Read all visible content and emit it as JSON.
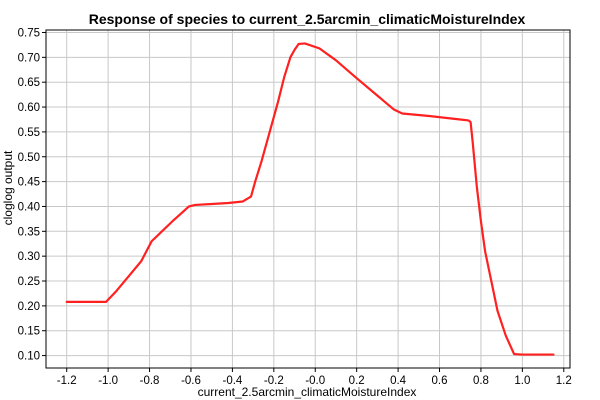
{
  "chart_data": {
    "type": "line",
    "title": "Response of species to current_2.5arcmin_climaticMoistureIndex",
    "xlabel": "current_2.5arcmin_climaticMoistureIndex",
    "ylabel": "cloglog output",
    "xlim": [
      -1.3,
      1.23
    ],
    "ylim": [
      0.075,
      0.755
    ],
    "grid": true,
    "xticks": [
      -1.2,
      -1.0,
      -0.8,
      -0.6,
      -0.4,
      -0.2,
      0.0,
      0.2,
      0.4,
      0.6,
      0.8,
      1.0,
      1.2
    ],
    "xtick_labels": [
      "-1.2",
      "-1.0",
      "-0.8",
      "-0.6",
      "-0.4",
      "-0.2",
      "-0.0",
      "0.2",
      "0.4",
      "0.6",
      "0.8",
      "1.0",
      "1.2"
    ],
    "yticks": [
      0.1,
      0.15,
      0.2,
      0.25,
      0.3,
      0.35,
      0.4,
      0.45,
      0.5,
      0.55,
      0.6,
      0.65,
      0.7,
      0.75
    ],
    "ytick_labels": [
      "0.10",
      "0.15",
      "0.20",
      "0.25",
      "0.30",
      "0.35",
      "0.40",
      "0.45",
      "0.50",
      "0.55",
      "0.60",
      "0.65",
      "0.70",
      "0.75"
    ],
    "series": [
      {
        "color": "#ff2020",
        "x": [
          -1.2,
          -1.01,
          -0.96,
          -0.9,
          -0.84,
          -0.79,
          -0.74,
          -0.69,
          -0.65,
          -0.61,
          -0.58,
          -0.5,
          -0.42,
          -0.35,
          -0.31,
          -0.29,
          -0.26,
          -0.22,
          -0.18,
          -0.15,
          -0.12,
          -0.1,
          -0.08,
          -0.05,
          0.02,
          0.1,
          0.2,
          0.3,
          0.38,
          0.42,
          0.55,
          0.7,
          0.74,
          0.75,
          0.76,
          0.78,
          0.8,
          0.82,
          0.85,
          0.88,
          0.92,
          0.96,
          1.0,
          1.15
        ],
        "y": [
          0.208,
          0.208,
          0.23,
          0.26,
          0.29,
          0.33,
          0.35,
          0.37,
          0.385,
          0.4,
          0.403,
          0.405,
          0.407,
          0.41,
          0.42,
          0.45,
          0.49,
          0.55,
          0.61,
          0.66,
          0.7,
          0.715,
          0.727,
          0.728,
          0.718,
          0.694,
          0.658,
          0.623,
          0.595,
          0.587,
          0.582,
          0.575,
          0.573,
          0.57,
          0.53,
          0.44,
          0.37,
          0.31,
          0.25,
          0.19,
          0.14,
          0.103,
          0.102,
          0.102
        ]
      }
    ]
  }
}
